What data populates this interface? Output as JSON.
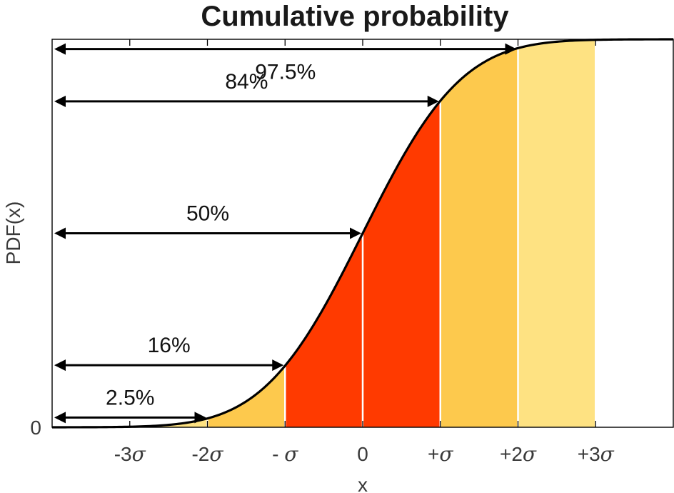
{
  "chart_data": {
    "type": "area",
    "title": "Cumulative probability",
    "xlabel": "x",
    "ylabel": "PDF(x)",
    "xlim": [
      -4,
      4
    ],
    "ylim": [
      0,
      1
    ],
    "x_ticks": [
      {
        "value": -3,
        "num": "-3",
        "sym": "σ"
      },
      {
        "value": -2,
        "num": "-2",
        "sym": "σ"
      },
      {
        "value": -1,
        "num": "- ",
        "sym": "σ"
      },
      {
        "value": 0,
        "num": "0",
        "sym": ""
      },
      {
        "value": 1,
        "num": "+",
        "sym": "σ"
      },
      {
        "value": 2,
        "num": "+2",
        "sym": "σ"
      },
      {
        "value": 3,
        "num": "+3",
        "sym": "σ"
      }
    ],
    "y_ticks": [
      {
        "value": 0,
        "label": "0"
      }
    ],
    "bands": [
      {
        "from": -3,
        "to": -2,
        "color": "#FEE282"
      },
      {
        "from": -2,
        "to": -1,
        "color": "#FDC94D"
      },
      {
        "from": -1,
        "to": 0,
        "color": "#FF3A00"
      },
      {
        "from": 0,
        "to": 1,
        "color": "#FF3A00"
      },
      {
        "from": 1,
        "to": 2,
        "color": "#FDC94D"
      },
      {
        "from": 2,
        "to": 3,
        "color": "#FEE282"
      }
    ],
    "annotations": [
      {
        "label": "2.5%",
        "x": -2,
        "y": 0.025
      },
      {
        "label": "16%",
        "x": -1,
        "y": 0.16
      },
      {
        "label": "50%",
        "x": 0,
        "y": 0.5
      },
      {
        "label": "84%",
        "x": 1,
        "y": 0.84
      },
      {
        "label": "97.5%",
        "x": 2,
        "y": 0.975
      }
    ],
    "curve_color": "#000000",
    "grid": false
  }
}
